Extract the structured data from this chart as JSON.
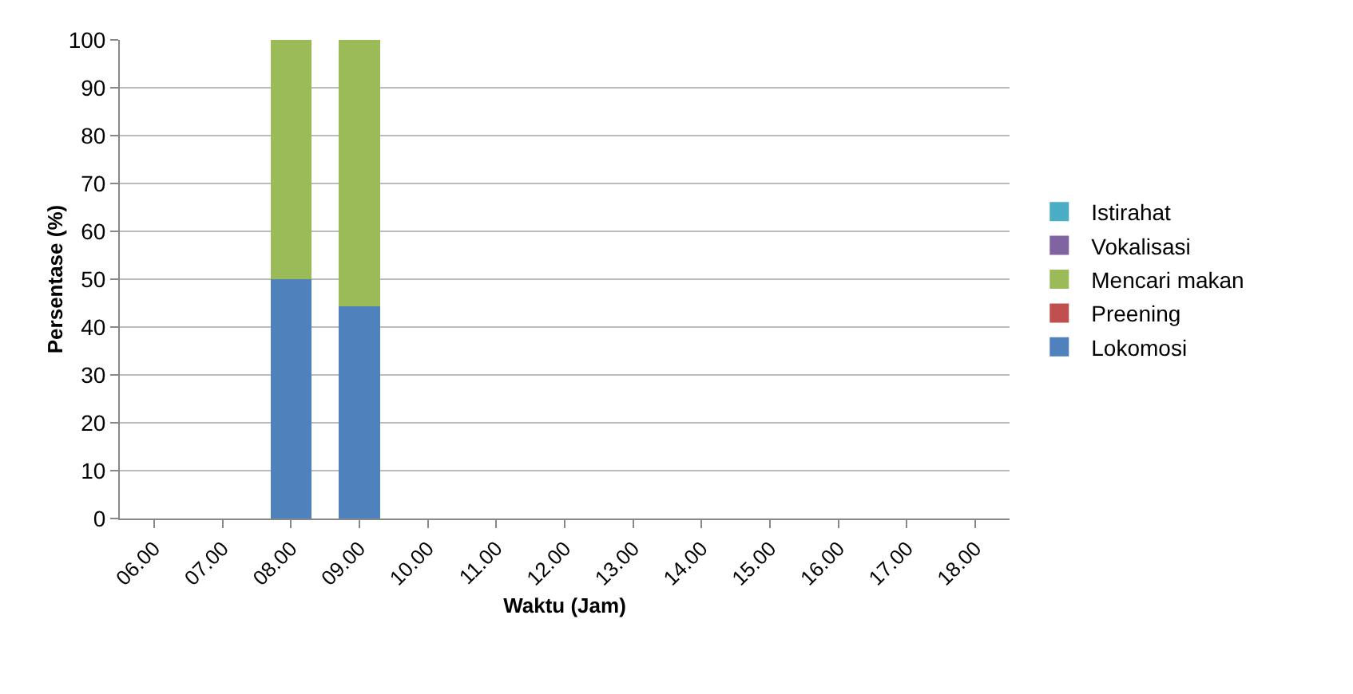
{
  "chart_data": {
    "type": "bar",
    "stacked": true,
    "xlabel": "Waktu (Jam)",
    "ylabel": "Persentase (%)",
    "categories": [
      "06.00",
      "07.00",
      "08.00",
      "09.00",
      "10.00",
      "11.00",
      "12.00",
      "13.00",
      "14.00",
      "15.00",
      "16.00",
      "17.00",
      "18.00"
    ],
    "series": [
      {
        "name": "Lokomosi",
        "color": "#4f81bd",
        "values": [
          null,
          null,
          50,
          44.4,
          null,
          null,
          null,
          null,
          null,
          null,
          null,
          null,
          null
        ]
      },
      {
        "name": "Preening",
        "color": "#c0504d",
        "values": [
          null,
          null,
          0,
          0,
          null,
          null,
          null,
          null,
          null,
          null,
          null,
          null,
          null
        ]
      },
      {
        "name": "Mencari makan",
        "color": "#9bbb59",
        "values": [
          null,
          null,
          50,
          55.6,
          null,
          null,
          null,
          null,
          null,
          null,
          null,
          null,
          null
        ]
      },
      {
        "name": "Vokalisasi",
        "color": "#8064a2",
        "values": [
          null,
          null,
          0,
          0,
          null,
          null,
          null,
          null,
          null,
          null,
          null,
          null,
          null
        ]
      },
      {
        "name": "Istirahat",
        "color": "#4bacc6",
        "values": [
          null,
          null,
          0,
          0,
          null,
          null,
          null,
          null,
          null,
          null,
          null,
          null,
          null
        ]
      }
    ],
    "ylim": [
      0,
      100
    ],
    "yticks": [
      0,
      10,
      20,
      30,
      40,
      50,
      60,
      70,
      80,
      90,
      100
    ],
    "grid": "y",
    "legend": "right"
  }
}
